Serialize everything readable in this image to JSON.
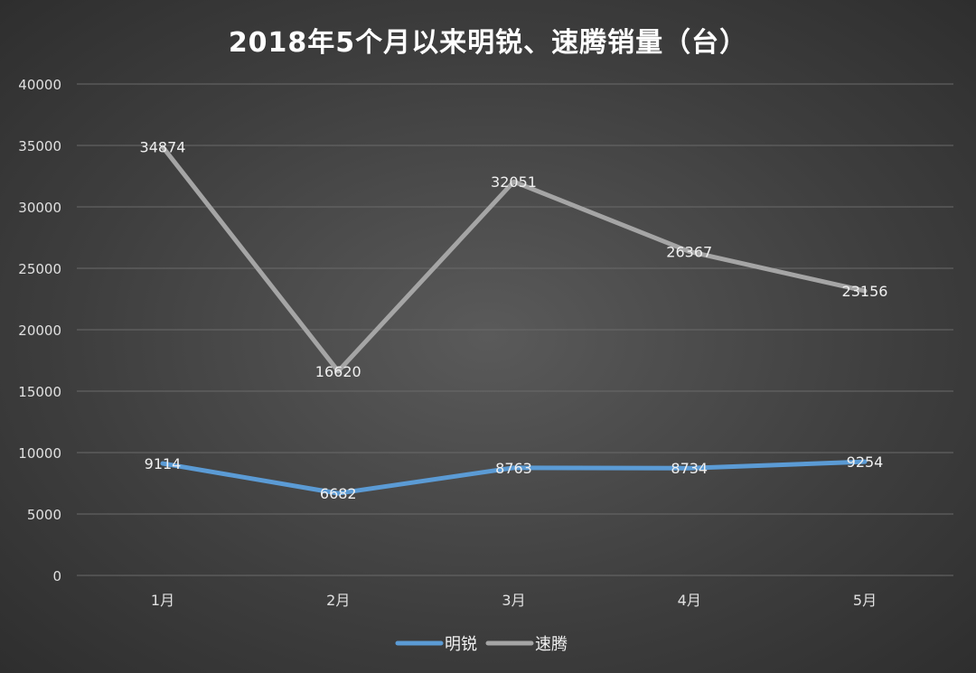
{
  "chart_data": {
    "type": "line",
    "title": "2018年5个月以来明锐、速腾销量（台）",
    "categories": [
      "1月",
      "2月",
      "3月",
      "4月",
      "5月"
    ],
    "ylim": [
      0,
      40000
    ],
    "yticks": [
      0,
      5000,
      10000,
      15000,
      20000,
      25000,
      30000,
      35000,
      40000
    ],
    "grid": true,
    "legend": "bottom",
    "series": [
      {
        "name": "明锐",
        "color": "#5b9bd5",
        "values": [
          9114,
          6682,
          8763,
          8734,
          9254
        ]
      },
      {
        "name": "速腾",
        "color": "#a5a5a5",
        "values": [
          34874,
          16620,
          32051,
          26367,
          23156
        ]
      }
    ]
  }
}
